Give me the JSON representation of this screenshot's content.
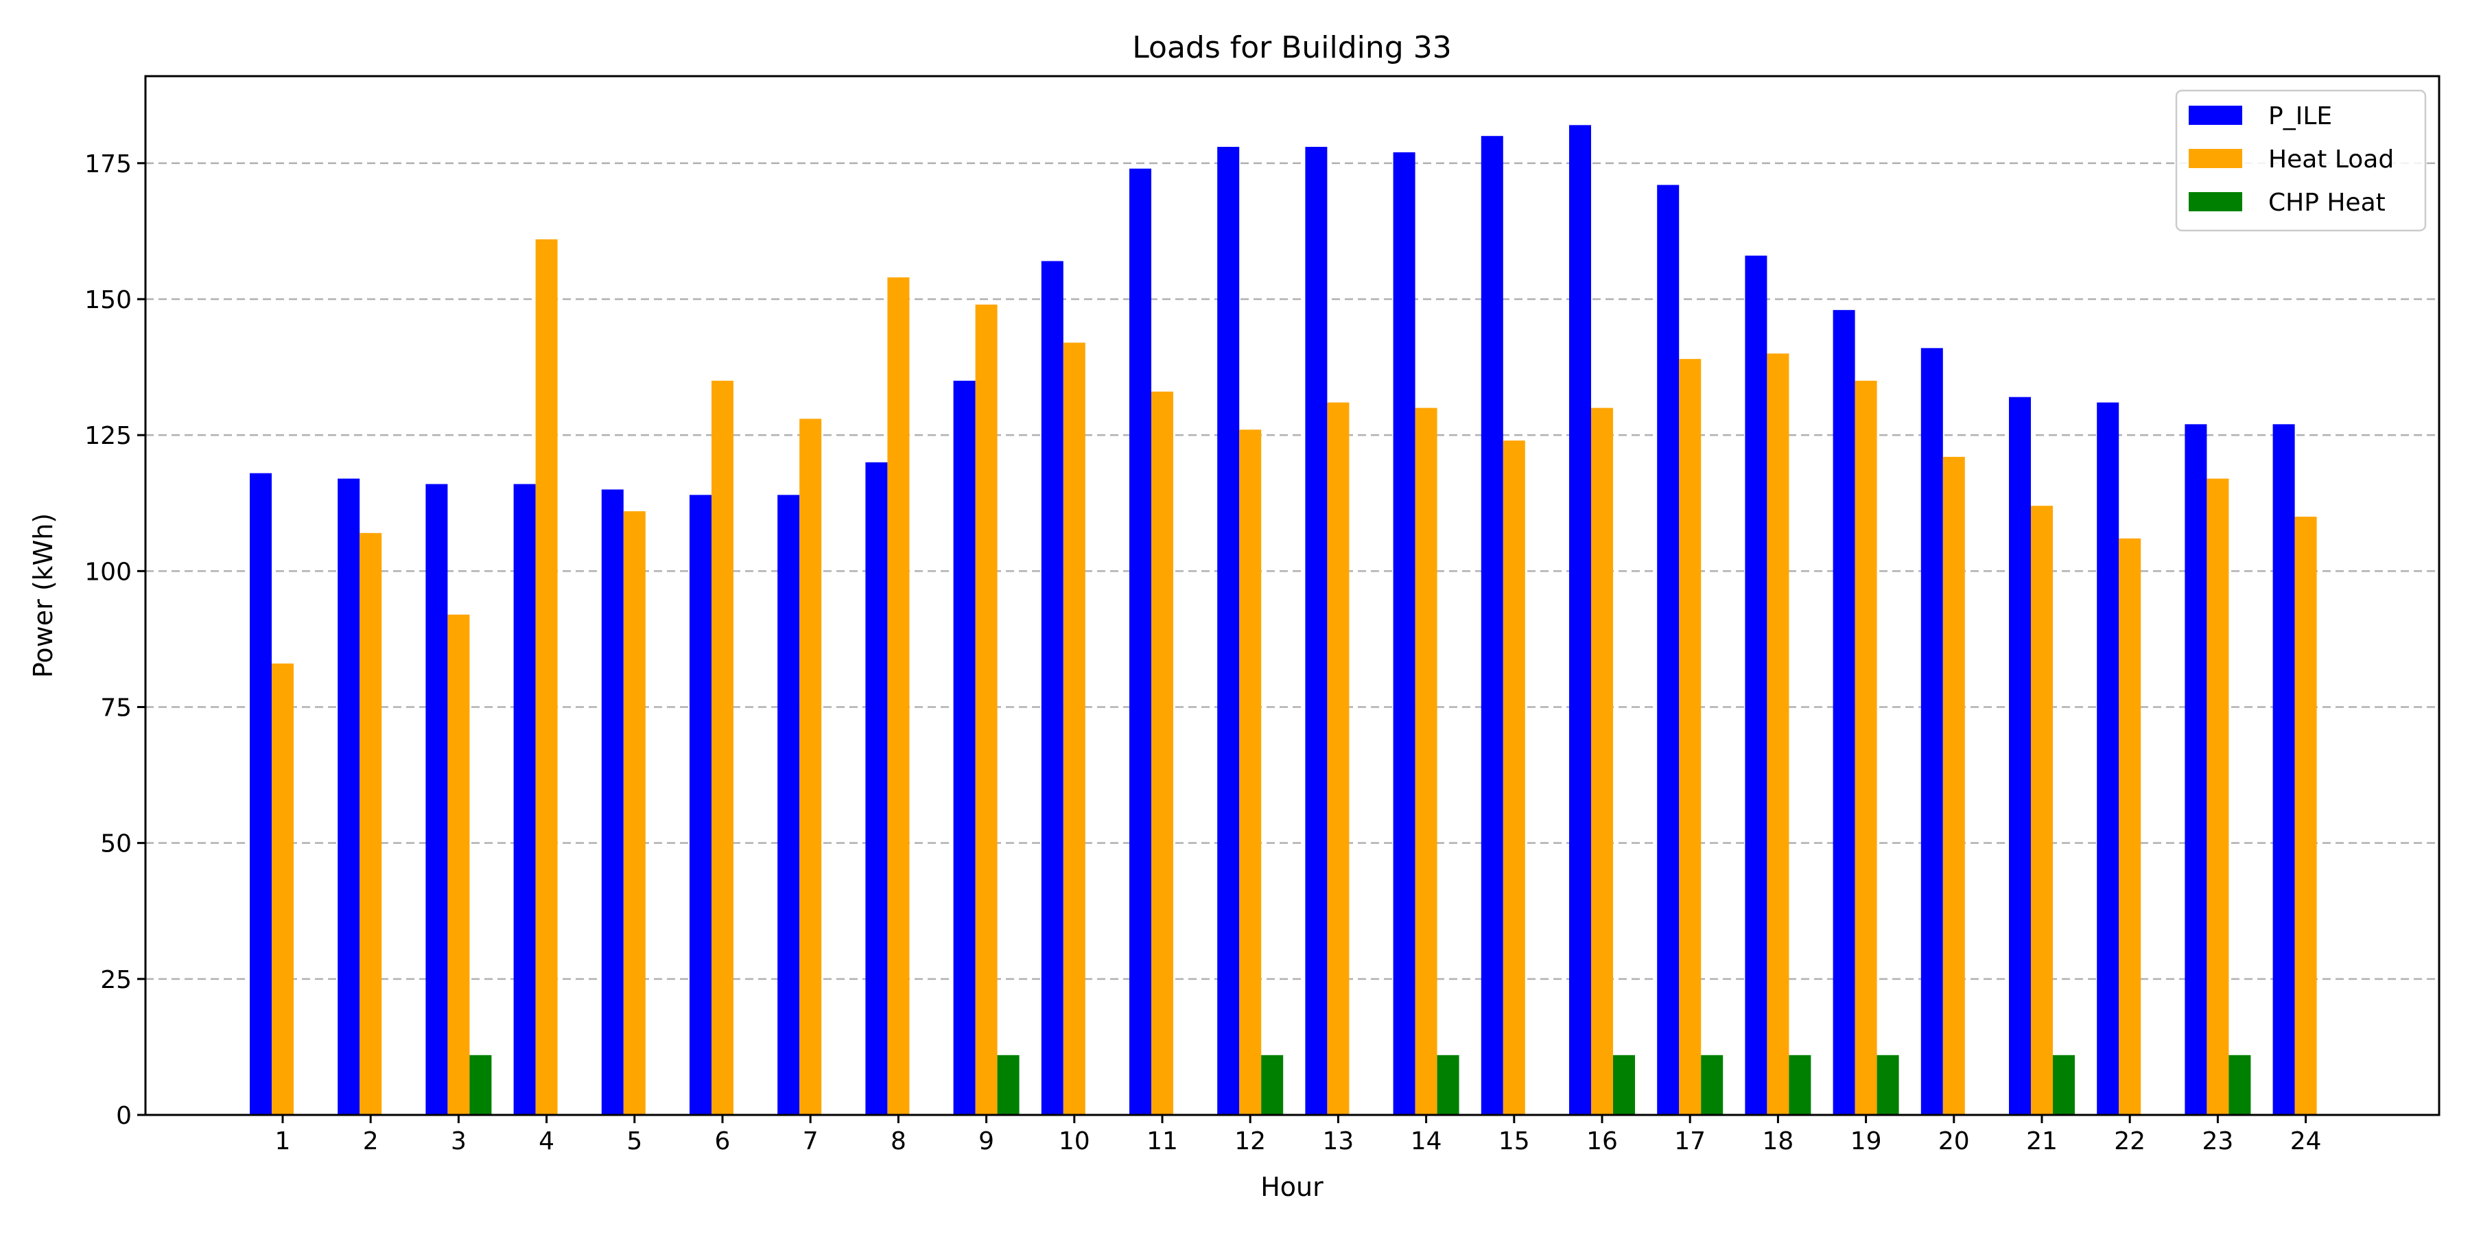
{
  "chart_data": {
    "type": "bar",
    "title": "Loads for Building 33",
    "xlabel": "Hour",
    "ylabel": "Power (kWh)",
    "categories": [
      "1",
      "2",
      "3",
      "4",
      "5",
      "6",
      "7",
      "8",
      "9",
      "10",
      "11",
      "12",
      "13",
      "14",
      "15",
      "16",
      "17",
      "18",
      "19",
      "20",
      "21",
      "22",
      "23",
      "24"
    ],
    "ylim": [
      0,
      191
    ],
    "yticks": [
      0,
      25,
      50,
      75,
      100,
      125,
      150,
      175
    ],
    "grid": "y-axis, dashed",
    "legend_position": "top-right",
    "series": [
      {
        "name": "P_ILE",
        "color": "#0000ff",
        "values": [
          118,
          117,
          116,
          116,
          115,
          114,
          114,
          120,
          135,
          157,
          174,
          178,
          178,
          177,
          180,
          182,
          171,
          158,
          148,
          141,
          132,
          131,
          127,
          127
        ]
      },
      {
        "name": "Heat Load",
        "color": "#ffa500",
        "values": [
          83,
          107,
          92,
          161,
          111,
          135,
          128,
          154,
          149,
          142,
          133,
          126,
          131,
          130,
          124,
          130,
          139,
          140,
          135,
          121,
          112,
          106,
          117,
          110
        ]
      },
      {
        "name": "CHP Heat",
        "color": "#008000",
        "values": [
          0,
          0,
          11,
          0,
          0,
          0,
          0,
          0,
          11,
          0,
          0,
          11,
          0,
          11,
          0,
          11,
          11,
          11,
          11,
          0,
          11,
          0,
          11,
          0
        ]
      }
    ]
  }
}
